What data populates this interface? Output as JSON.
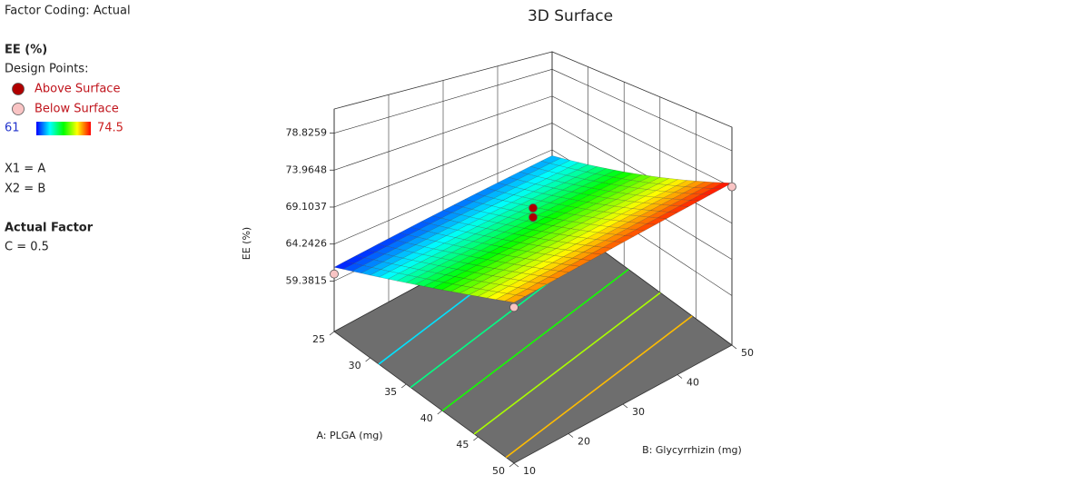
{
  "chart_data": {
    "type": "surface3d",
    "title": "3D Surface",
    "factor_coding": "Factor Coding: Actual",
    "legend_title": "EE (%)",
    "legend_subtitle": "Design Points:",
    "colorbar": {
      "min": 61,
      "max": 74.5,
      "colors": [
        "#0000ff",
        "#00ffff",
        "#00ff00",
        "#ffff00",
        "#ff0000"
      ]
    },
    "factor_lines": [
      "X1 = A",
      "X2 = B"
    ],
    "actual_factor_title": "Actual Factor",
    "actual_factor": "C = 0.5",
    "xlabel": "A: PLGA (mg)",
    "ylabel": "B: Glycyrrhizin (mg)",
    "zlabel": "EE (%)",
    "xlim": [
      25,
      50
    ],
    "ylim": [
      10,
      50
    ],
    "zlim": [
      52.74,
      82.0
    ],
    "xticks": [
      25,
      30,
      35,
      40,
      45,
      50
    ],
    "yticks": [
      10,
      20,
      30,
      40,
      50
    ],
    "zticks": [
      59.3815,
      64.2426,
      69.1037,
      73.9648,
      78.8259
    ],
    "surface_corners": [
      [
        61.2,
        63.2
      ],
      [
        72.5,
        74.5
      ]
    ],
    "contours": [
      64,
      66,
      68,
      70,
      72
    ],
    "floor_color": "#6e6e6e",
    "series": [
      {
        "name": "Above Surface",
        "color": "#b00000",
        "A": [
          37.5,
          37.5
        ],
        "B": [
          30,
          30
        ],
        "values": [
          70.9,
          69.6
        ]
      },
      {
        "name": "Below Surface",
        "color": "#f9c4c4",
        "A": [
          25,
          50,
          50
        ],
        "B": [
          10,
          10,
          50
        ],
        "values": [
          60.3,
          71.9,
          74.0
        ]
      }
    ]
  }
}
